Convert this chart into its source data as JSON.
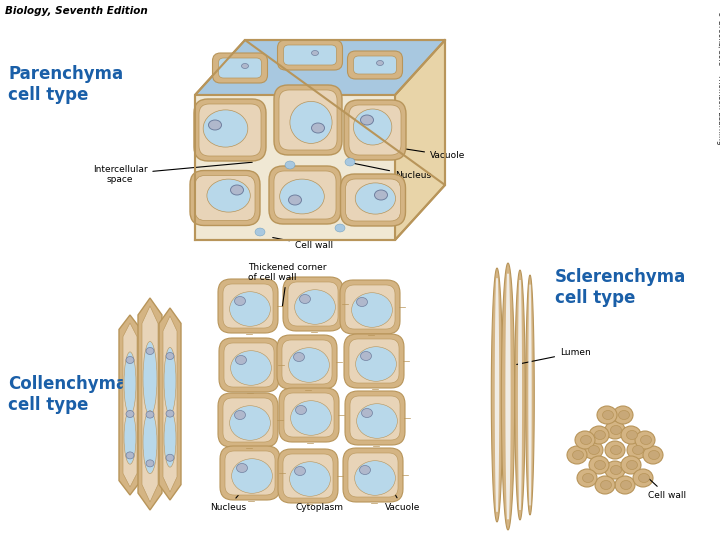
{
  "bg_color": "#ffffff",
  "title_text": "Biology, Seventh Edition",
  "title_color": "#000000",
  "title_fontsize": 7.5,
  "copyright_text": "© Brooks/Cole – Thomson Learning",
  "copyright_color": "#333333",
  "copyright_fontsize": 5.5,
  "parenchyma_label": "Parenchyma\ncell type",
  "parenchyma_color": "#1a5fa8",
  "collenchyma_label": "Collenchyma\ncell type",
  "collenchyma_color": "#1a5fa8",
  "sclerenchyma_label": "Sclerenchyma\ncell type",
  "sclerenchyma_color": "#1a5fa8",
  "cell_wall_color": "#d4b483",
  "cell_wall_dark": "#b8955a",
  "vacuole_color": "#b8d8ea",
  "cytoplasm_color": "#e8d4b8",
  "nucleus_color": "#b0b8cc",
  "nucleus_edge": "#7080a0",
  "intercellular_color": "#a8c8e0",
  "scler_inner_color": "#c8a878",
  "annotation_color": "#000000",
  "annotation_fontsize": 6.5,
  "label_fontsize": 12
}
